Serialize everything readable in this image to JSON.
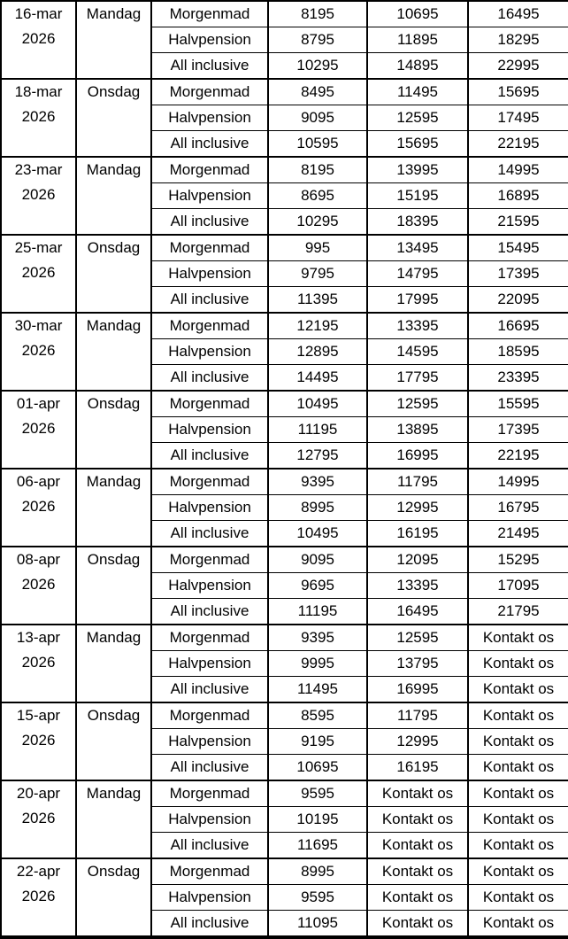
{
  "styles": {
    "border_color": "#000000",
    "background_color": "#ffffff",
    "text_color": "#000000"
  },
  "chart_data": {
    "type": "table",
    "title": "",
    "layout": {
      "columns_per_row": 6,
      "rows_per_date_block": 3,
      "grid": "on",
      "merged_cells": "date and day cells span 3 rows"
    },
    "blocks": [
      {
        "date": "16-mar",
        "year": "2026",
        "day": "Mandag",
        "rows": [
          {
            "meal": "Morgenmad",
            "prices": [
              "8195",
              "10695",
              "16495"
            ]
          },
          {
            "meal": "Halvpension",
            "prices": [
              "8795",
              "11895",
              "18295"
            ]
          },
          {
            "meal": "All inclusive",
            "prices": [
              "10295",
              "14895",
              "22995"
            ]
          }
        ]
      },
      {
        "date": "18-mar",
        "year": "2026",
        "day": "Onsdag",
        "rows": [
          {
            "meal": "Morgenmad",
            "prices": [
              "8495",
              "11495",
              "15695"
            ]
          },
          {
            "meal": "Halvpension",
            "prices": [
              "9095",
              "12595",
              "17495"
            ]
          },
          {
            "meal": "All inclusive",
            "prices": [
              "10595",
              "15695",
              "22195"
            ]
          }
        ]
      },
      {
        "date": "23-mar",
        "year": "2026",
        "day": "Mandag",
        "rows": [
          {
            "meal": "Morgenmad",
            "prices": [
              "8195",
              "13995",
              "14995"
            ]
          },
          {
            "meal": "Halvpension",
            "prices": [
              "8695",
              "15195",
              "16895"
            ]
          },
          {
            "meal": "All inclusive",
            "prices": [
              "10295",
              "18395",
              "21595"
            ]
          }
        ]
      },
      {
        "date": "25-mar",
        "year": "2026",
        "day": "Onsdag",
        "rows": [
          {
            "meal": "Morgenmad",
            "prices": [
              "995",
              "13495",
              "15495"
            ]
          },
          {
            "meal": "Halvpension",
            "prices": [
              "9795",
              "14795",
              "17395"
            ]
          },
          {
            "meal": "All inclusive",
            "prices": [
              "11395",
              "17995",
              "22095"
            ]
          }
        ]
      },
      {
        "date": "30-mar",
        "year": "2026",
        "day": "Mandag",
        "rows": [
          {
            "meal": "Morgenmad",
            "prices": [
              "12195",
              "13395",
              "16695"
            ]
          },
          {
            "meal": "Halvpension",
            "prices": [
              "12895",
              "14595",
              "18595"
            ]
          },
          {
            "meal": "All inclusive",
            "prices": [
              "14495",
              "17795",
              "23395"
            ]
          }
        ]
      },
      {
        "date": "01-apr",
        "year": "2026",
        "day": "Onsdag",
        "rows": [
          {
            "meal": "Morgenmad",
            "prices": [
              "10495",
              "12595",
              "15595"
            ]
          },
          {
            "meal": "Halvpension",
            "prices": [
              "11195",
              "13895",
              "17395"
            ]
          },
          {
            "meal": "All inclusive",
            "prices": [
              "12795",
              "16995",
              "22195"
            ]
          }
        ]
      },
      {
        "date": "06-apr",
        "year": "2026",
        "day": "Mandag",
        "rows": [
          {
            "meal": "Morgenmad",
            "prices": [
              "9395",
              "11795",
              "14995"
            ]
          },
          {
            "meal": "Halvpension",
            "prices": [
              "8995",
              "12995",
              "16795"
            ]
          },
          {
            "meal": "All inclusive",
            "prices": [
              "10495",
              "16195",
              "21495"
            ]
          }
        ]
      },
      {
        "date": "08-apr",
        "year": "2026",
        "day": "Onsdag",
        "rows": [
          {
            "meal": "Morgenmad",
            "prices": [
              "9095",
              "12095",
              "15295"
            ]
          },
          {
            "meal": "Halvpension",
            "prices": [
              "9695",
              "13395",
              "17095"
            ]
          },
          {
            "meal": "All inclusive",
            "prices": [
              "11195",
              "16495",
              "21795"
            ]
          }
        ]
      },
      {
        "date": "13-apr",
        "year": "2026",
        "day": "Mandag",
        "rows": [
          {
            "meal": "Morgenmad",
            "prices": [
              "9395",
              "12595",
              "Kontakt os"
            ]
          },
          {
            "meal": "Halvpension",
            "prices": [
              "9995",
              "13795",
              "Kontakt os"
            ]
          },
          {
            "meal": "All inclusive",
            "prices": [
              "11495",
              "16995",
              "Kontakt os"
            ]
          }
        ]
      },
      {
        "date": "15-apr",
        "year": "2026",
        "day": "Onsdag",
        "rows": [
          {
            "meal": "Morgenmad",
            "prices": [
              "8595",
              "11795",
              "Kontakt os"
            ]
          },
          {
            "meal": "Halvpension",
            "prices": [
              "9195",
              "12995",
              "Kontakt os"
            ]
          },
          {
            "meal": "All inclusive",
            "prices": [
              "10695",
              "16195",
              "Kontakt os"
            ]
          }
        ]
      },
      {
        "date": "20-apr",
        "year": "2026",
        "day": "Mandag",
        "rows": [
          {
            "meal": "Morgenmad",
            "prices": [
              "9595",
              "Kontakt os",
              "Kontakt os"
            ]
          },
          {
            "meal": "Halvpension",
            "prices": [
              "10195",
              "Kontakt os",
              "Kontakt os"
            ]
          },
          {
            "meal": "All inclusive",
            "prices": [
              "11695",
              "Kontakt os",
              "Kontakt os"
            ]
          }
        ]
      },
      {
        "date": "22-apr",
        "year": "2026",
        "day": "Onsdag",
        "rows": [
          {
            "meal": "Morgenmad",
            "prices": [
              "8995",
              "Kontakt os",
              "Kontakt os"
            ]
          },
          {
            "meal": "Halvpension",
            "prices": [
              "9595",
              "Kontakt os",
              "Kontakt os"
            ]
          },
          {
            "meal": "All inclusive",
            "prices": [
              "11095",
              "Kontakt os",
              "Kontakt os"
            ]
          }
        ]
      }
    ]
  }
}
